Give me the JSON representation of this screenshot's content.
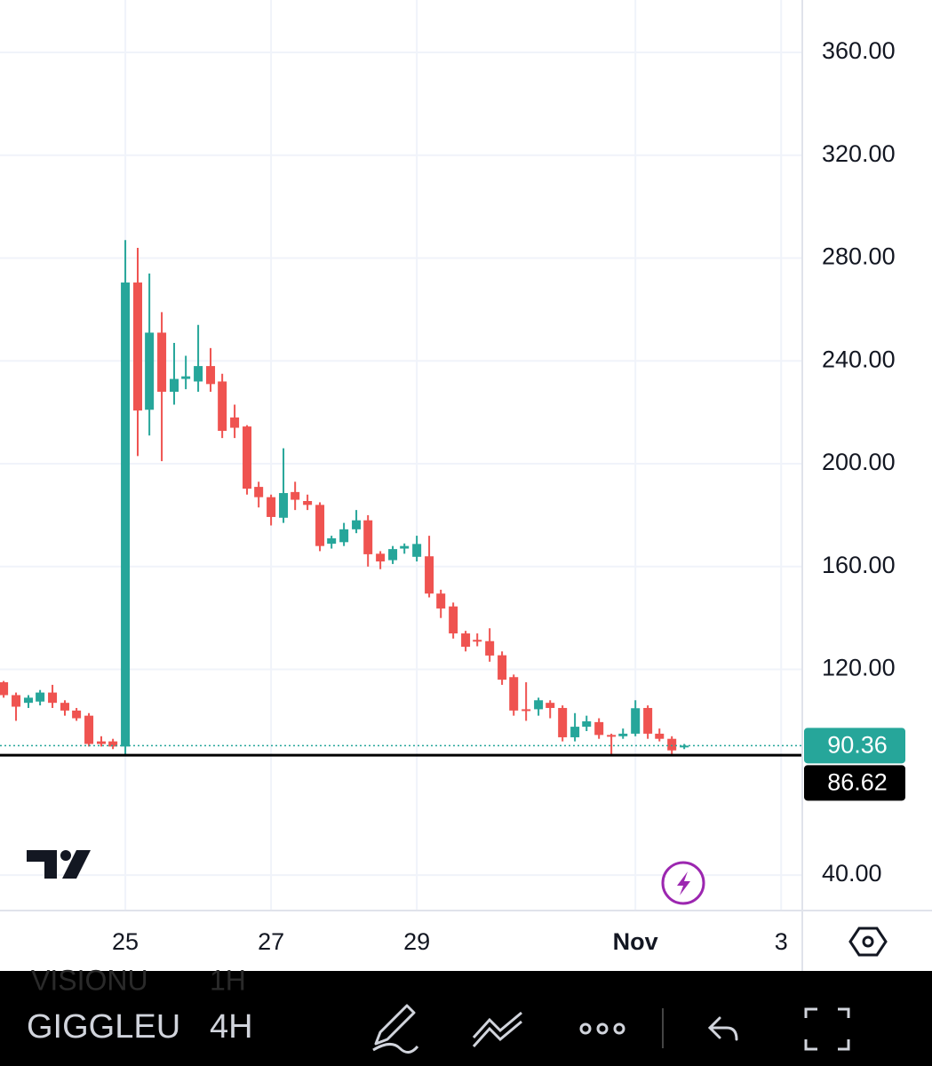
{
  "chart_data": {
    "type": "candlestick",
    "x": [
      23.33,
      23.5,
      23.67,
      23.83,
      24,
      24.17,
      24.33,
      24.5,
      24.67,
      24.83,
      25,
      25.17,
      25.33,
      25.5,
      25.67,
      25.83,
      26,
      26.17,
      26.33,
      26.5,
      26.67,
      26.83,
      27,
      27.17,
      27.33,
      27.5,
      27.67,
      27.83,
      28,
      28.17,
      28.33,
      28.5,
      28.67,
      28.83,
      29,
      29.17,
      29.33,
      29.5,
      29.67,
      29.83,
      30,
      30.17,
      30.33,
      30.5,
      30.67,
      30.83,
      31,
      31.17,
      31.33,
      31.5,
      31.67,
      31.83,
      32,
      32.17,
      32.33,
      32.5,
      32.67
    ],
    "open": [
      115,
      110,
      107,
      107.5,
      111,
      107,
      104,
      102,
      92,
      92,
      90,
      270.5,
      221,
      251,
      228,
      233,
      232,
      238,
      232,
      218,
      214.5,
      191,
      187,
      179,
      189,
      185.5,
      184,
      168.9,
      169.5,
      174.5,
      178,
      165,
      162.5,
      167,
      163.8,
      164,
      149.5,
      144.5,
      134,
      131.5,
      131,
      125.5,
      117,
      104.5,
      104.5,
      107,
      105,
      93.6,
      97.7,
      99.5,
      94.5,
      94,
      95,
      105,
      95,
      93,
      89.7
    ],
    "high": [
      115.5,
      111,
      110,
      112,
      114,
      108,
      105,
      103,
      94,
      93,
      287,
      284,
      274,
      259,
      247,
      242,
      254,
      245,
      235,
      223,
      215,
      193,
      188,
      206,
      193,
      188,
      185,
      172,
      177,
      182,
      180,
      166,
      168,
      169,
      172,
      172,
      151,
      146,
      135,
      134,
      136,
      127,
      118,
      115,
      109,
      108,
      106,
      103,
      102,
      101,
      95,
      97,
      108,
      106,
      97,
      94,
      91
    ],
    "low": [
      109,
      100,
      105,
      106,
      105,
      102,
      100,
      90,
      90,
      89,
      87,
      203,
      211,
      201,
      223,
      229,
      228,
      228,
      210,
      210,
      188,
      183,
      176,
      177,
      182,
      182,
      166,
      167,
      168,
      173,
      160,
      159,
      161,
      165,
      162,
      148,
      140,
      132,
      127,
      129,
      123,
      114,
      102,
      100,
      102,
      101,
      92,
      92,
      96,
      93,
      87,
      93,
      94,
      93,
      92,
      87,
      89
    ],
    "close": [
      110,
      105.5,
      109,
      111,
      107,
      104,
      101,
      91,
      91,
      90,
      270.5,
      220.7,
      251,
      228,
      233,
      234,
      238,
      231,
      212.8,
      214,
      190.3,
      187,
      179.3,
      188.6,
      186,
      184,
      168,
      171,
      174.5,
      178,
      164.8,
      162,
      166.8,
      168,
      168.8,
      149.5,
      143.7,
      134,
      128.8,
      131,
      125.4,
      116,
      104,
      104,
      108,
      105,
      93.6,
      97.7,
      99.8,
      94.5,
      94,
      95,
      104.9,
      95,
      93,
      88.5,
      90.36
    ],
    "up_color": "#26a69a",
    "down_color": "#ef5350",
    "xlim": [
      23.28,
      34.29
    ],
    "xticks": [
      25,
      27,
      29,
      {
        "value": 32,
        "label": "Nov"
      },
      {
        "value": 34,
        "label": "3"
      }
    ],
    "ylim": [
      26.2,
      380.4
    ],
    "yticks": [
      {
        "value": 40,
        "label": "40.00"
      },
      {
        "value": 120,
        "label": "120.00"
      },
      {
        "value": 160,
        "label": "160.00"
      },
      {
        "value": 200,
        "label": "200.00"
      },
      {
        "value": 240,
        "label": "240.00"
      },
      {
        "value": 280,
        "label": "280.00"
      },
      {
        "value": 320,
        "label": "320.00"
      },
      {
        "value": 360,
        "label": "360.00"
      }
    ],
    "grid": true,
    "last_price": 90.36,
    "price_line": 86.62
  },
  "toolbar": {
    "symbol": "GIGGLEU",
    "interval": "4H",
    "ghost_symbol": "VISIONU",
    "ghost_interval": "1H"
  }
}
